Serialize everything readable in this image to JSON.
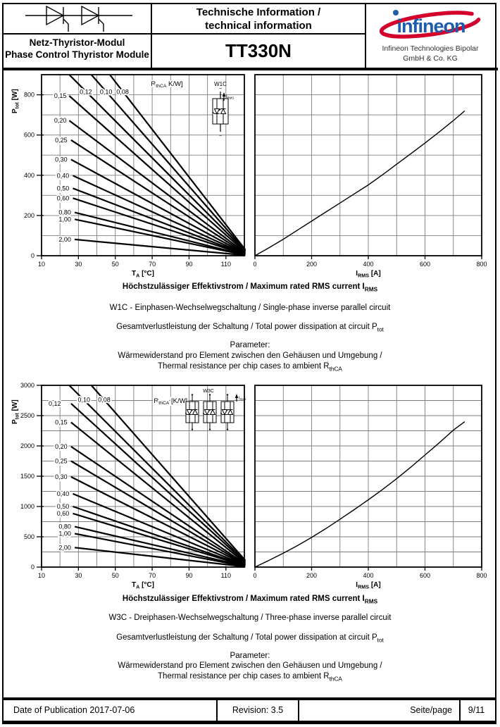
{
  "header": {
    "title_line1": "Technische Information /",
    "title_line2": "technical information",
    "product": "TT330N",
    "module_de": "Netz-Thyristor-Modul",
    "module_en": "Phase Control Thyristor Module",
    "brand_word": "infineon",
    "company_line1": "Infineon Technologies Bipolar",
    "company_line2": "GmbH & Co. KG",
    "logo_blue": "#1d5cad",
    "logo_red": "#d3002c"
  },
  "captions": [
    {
      "heading": "Höchstzulässiger Effektivstrom / Maximum rated RMS current I_{RMS}",
      "circuit": "W1C - Einphasen-Wechselwegschaltung / Single-phase inverse parallel circuit",
      "dissipation": "Gesamtverlustleistung der Schaltung / Total power dissipation at circuit P_{tot}",
      "parameter_title": "Parameter:",
      "parameter_de": "Wärmewiderstand pro Element zwischen den Gehäusen und Umgebung /",
      "parameter_en": "Thermal resistance per chip cases to ambient R_{thCA}"
    },
    {
      "heading": "Höchstzulässiger Effektivstrom / Maximum rated RMS current I_{RMS}",
      "circuit": "W3C - Dreiphasen-Wechselwegschaltung / Three-phase inverse parallel circuit",
      "dissipation": "Gesamtverlustleistung der Schaltung / Total power dissipation at circuit P_{tot}",
      "parameter_title": "Parameter:",
      "parameter_de": "Wärmewiderstand pro Element zwischen den Gehäusen und Umgebung /",
      "parameter_en": "Thermal resistance per chip cases to ambient R_{thCA}"
    }
  ],
  "footer": {
    "date": "Date of Publication 2017-07-06",
    "revision": "Revision: 3.5",
    "page_label": "Seite/page",
    "page_value": "9/11"
  },
  "chart_data": [
    {
      "id": "w1c_ta",
      "type": "line",
      "title": "W1C total power dissipation vs ambient temperature, parameter RthCA",
      "xlabel": "T_{A} [°C]",
      "ylabel": "P_{tot} [W]",
      "xlim": [
        10,
        120
      ],
      "ylim": [
        0,
        900
      ],
      "x_ticks": [
        10,
        30,
        50,
        70,
        90,
        110
      ],
      "y_ticks": [
        0,
        200,
        400,
        600,
        800
      ],
      "x_grid_step": 10,
      "y_grid_step": 100,
      "grid": true,
      "legend": "none",
      "annotation": {
        "text": "R_{thCA} K/W]",
        "x": 78,
        "y": 855
      },
      "inset": {
        "type": "w1c",
        "label": "W1C",
        "current_label": "I_{RMS}",
        "ac_symbol": "~"
      },
      "series": [
        {
          "name": "0,08",
          "points": [
            [
              47,
              900
            ],
            [
              120.5,
              30
            ]
          ],
          "label": {
            "x": 54,
            "y": 815,
            "anchor": "middle"
          }
        },
        {
          "name": "0,10",
          "points": [
            [
              37,
              900
            ],
            [
              120.5,
              26
            ]
          ],
          "label": {
            "x": 45,
            "y": 815,
            "anchor": "middle"
          }
        },
        {
          "name": "0,12",
          "points": [
            [
              25,
              900
            ],
            [
              120.5,
              22
            ]
          ],
          "label": {
            "x": 34,
            "y": 815,
            "anchor": "middle"
          }
        },
        {
          "name": "0,15",
          "points": [
            [
              25,
              795
            ],
            [
              120.5,
              18
            ]
          ],
          "label": {
            "x": 23.5,
            "y": 795,
            "anchor": "end"
          }
        },
        {
          "name": "0,20",
          "points": [
            [
              25,
              672
            ],
            [
              120.5,
              14
            ]
          ],
          "label": {
            "x": 23.5,
            "y": 672,
            "anchor": "end"
          }
        },
        {
          "name": "0,25",
          "points": [
            [
              26,
              575
            ],
            [
              120.5,
              11
            ]
          ],
          "label": {
            "x": 24,
            "y": 575,
            "anchor": "end"
          }
        },
        {
          "name": "0,30",
          "points": [
            [
              26,
              478
            ],
            [
              120.5,
              9
            ]
          ],
          "label": {
            "x": 24,
            "y": 478,
            "anchor": "end"
          }
        },
        {
          "name": "0,40",
          "points": [
            [
              27,
              398
            ],
            [
              120.5,
              7
            ]
          ],
          "label": {
            "x": 25,
            "y": 398,
            "anchor": "end"
          }
        },
        {
          "name": "0,50",
          "points": [
            [
              27,
              335
            ],
            [
              120.5,
              6
            ]
          ],
          "label": {
            "x": 25,
            "y": 335,
            "anchor": "end"
          }
        },
        {
          "name": "0,60",
          "points": [
            [
              27,
              286
            ],
            [
              120.5,
              5
            ]
          ],
          "label": {
            "x": 25,
            "y": 286,
            "anchor": "end"
          }
        },
        {
          "name": "0,80",
          "points": [
            [
              28,
              215
            ],
            [
              120.5,
              4
            ]
          ],
          "label": {
            "x": 26,
            "y": 215,
            "anchor": "end"
          }
        },
        {
          "name": "1,00",
          "points": [
            [
              28,
              181
            ],
            [
              120.5,
              3
            ]
          ],
          "label": {
            "x": 26,
            "y": 181,
            "anchor": "end"
          }
        },
        {
          "name": "2,00",
          "points": [
            [
              28,
              81
            ],
            [
              120.5,
              2
            ]
          ],
          "label": {
            "x": 26,
            "y": 81,
            "anchor": "end"
          }
        }
      ]
    },
    {
      "id": "w1c_irms",
      "type": "line",
      "title": "W1C total power dissipation vs RMS current",
      "xlabel": "I_{RMS} [A]",
      "ylabel": "",
      "xlim": [
        0,
        800
      ],
      "ylim": [
        0,
        900
      ],
      "x_ticks": [
        0,
        200,
        400,
        600,
        800
      ],
      "y_ticks": [],
      "x_grid_step": 100,
      "y_grid_step": 100,
      "grid": true,
      "legend": "none",
      "series": [
        {
          "name": "Ptot(IRMS)",
          "points": [
            [
              0,
              0
            ],
            [
              50,
              40
            ],
            [
              100,
              82
            ],
            [
              150,
              127
            ],
            [
              200,
              172
            ],
            [
              250,
              217
            ],
            [
              300,
              262
            ],
            [
              350,
              307
            ],
            [
              400,
              352
            ],
            [
              450,
              402
            ],
            [
              500,
              455
            ],
            [
              550,
              507
            ],
            [
              600,
              560
            ],
            [
              650,
              615
            ],
            [
              700,
              672
            ],
            [
              740,
              720
            ]
          ]
        }
      ]
    },
    {
      "id": "w3c_ta",
      "type": "line",
      "title": "W3C total power dissipation vs ambient temperature, parameter RthCA",
      "xlabel": "T_{A} [°C]",
      "ylabel": "P_{tot} [W]",
      "xlim": [
        10,
        120
      ],
      "ylim": [
        0,
        3000
      ],
      "x_ticks": [
        10,
        30,
        50,
        70,
        90,
        110
      ],
      "y_ticks": [
        0,
        500,
        1000,
        1500,
        2000,
        2500,
        3000
      ],
      "x_grid_step": 10,
      "y_grid_step": 250,
      "grid": true,
      "legend": "none",
      "annotation": {
        "text": "R_{thCA} [K/W]",
        "x": 80,
        "y": 2745
      },
      "inset": {
        "type": "w3c",
        "label": "W3C",
        "current_label": "I_{RMS}"
      },
      "series": [
        {
          "name": "0,08",
          "points": [
            [
              37,
              3000
            ],
            [
              120.5,
              110
            ]
          ],
          "label": {
            "x": 44,
            "y": 2760,
            "anchor": "middle"
          }
        },
        {
          "name": "0,10",
          "points": [
            [
              25,
              3000
            ],
            [
              120.5,
              95
            ]
          ],
          "label": {
            "x": 33,
            "y": 2760,
            "anchor": "middle"
          }
        },
        {
          "name": "0,12",
          "points": [
            [
              26,
              2700
            ],
            [
              120.5,
              80
            ]
          ],
          "label": {
            "x": 20.5,
            "y": 2700,
            "anchor": "end"
          }
        },
        {
          "name": "0,15",
          "points": [
            [
              26,
              2390
            ],
            [
              120.5,
              65
            ]
          ],
          "label": {
            "x": 24,
            "y": 2390,
            "anchor": "end"
          }
        },
        {
          "name": "0,20",
          "points": [
            [
              26,
              1990
            ],
            [
              120.5,
              52
            ]
          ],
          "label": {
            "x": 24,
            "y": 1990,
            "anchor": "end"
          }
        },
        {
          "name": "0,25",
          "points": [
            [
              26,
              1750
            ],
            [
              120.5,
              43
            ]
          ],
          "label": {
            "x": 24,
            "y": 1750,
            "anchor": "end"
          }
        },
        {
          "name": "0,30",
          "points": [
            [
              26,
              1490
            ],
            [
              120.5,
              36
            ]
          ],
          "label": {
            "x": 24,
            "y": 1490,
            "anchor": "end"
          }
        },
        {
          "name": "0,40",
          "points": [
            [
              27,
              1210
            ],
            [
              120.5,
              29
            ]
          ],
          "label": {
            "x": 25,
            "y": 1210,
            "anchor": "end"
          }
        },
        {
          "name": "0,50",
          "points": [
            [
              27,
              1000
            ],
            [
              120.5,
              24
            ]
          ],
          "label": {
            "x": 25,
            "y": 1000,
            "anchor": "end"
          }
        },
        {
          "name": "0,60",
          "points": [
            [
              27,
              885
            ],
            [
              120.5,
              20
            ]
          ],
          "label": {
            "x": 25,
            "y": 885,
            "anchor": "end"
          }
        },
        {
          "name": "0,80",
          "points": [
            [
              28,
              667
            ],
            [
              120.5,
              15
            ]
          ],
          "label": {
            "x": 26,
            "y": 667,
            "anchor": "end"
          }
        },
        {
          "name": "1,00",
          "points": [
            [
              28,
              552
            ],
            [
              120.5,
              11
            ]
          ],
          "label": {
            "x": 26,
            "y": 552,
            "anchor": "end"
          }
        },
        {
          "name": "2,00",
          "points": [
            [
              28,
              322
            ],
            [
              120.5,
              7
            ]
          ],
          "label": {
            "x": 26,
            "y": 322,
            "anchor": "end"
          }
        }
      ]
    },
    {
      "id": "w3c_irms",
      "type": "line",
      "title": "W3C total power dissipation vs RMS current",
      "xlabel": "I_{RMS} [A]",
      "ylabel": "",
      "xlim": [
        0,
        800
      ],
      "ylim": [
        0,
        3000
      ],
      "x_ticks": [
        0,
        200,
        400,
        600,
        800
      ],
      "y_ticks": [],
      "x_grid_step": 100,
      "y_grid_step": 250,
      "grid": true,
      "legend": "none",
      "series": [
        {
          "name": "Ptot(IRMS)",
          "points": [
            [
              0,
              0
            ],
            [
              50,
              112
            ],
            [
              100,
              230
            ],
            [
              150,
              355
            ],
            [
              200,
              490
            ],
            [
              250,
              635
            ],
            [
              300,
              790
            ],
            [
              350,
              948
            ],
            [
              400,
              1110
            ],
            [
              450,
              1280
            ],
            [
              500,
              1460
            ],
            [
              550,
              1650
            ],
            [
              600,
              1850
            ],
            [
              650,
              2050
            ],
            [
              700,
              2260
            ],
            [
              740,
              2400
            ]
          ]
        }
      ]
    }
  ]
}
